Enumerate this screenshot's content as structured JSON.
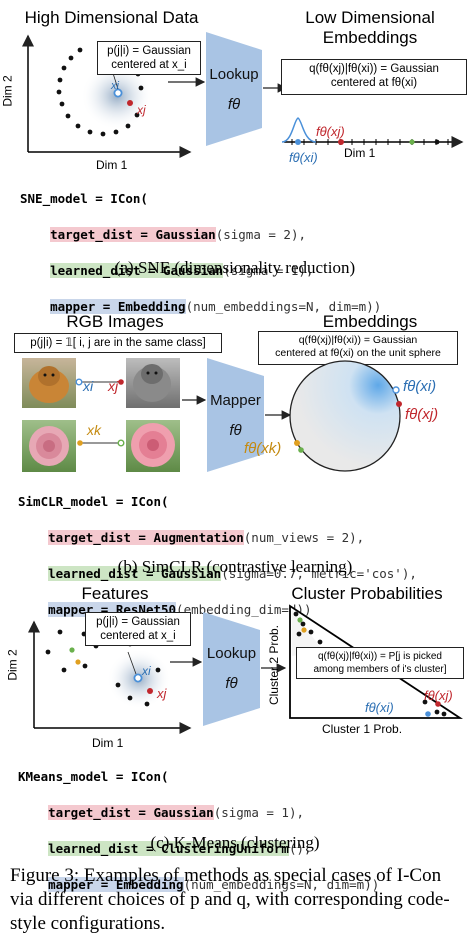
{
  "panel_a": {
    "header_left": "High Dimensional Data",
    "header_right_line1": "Low Dimensional",
    "header_right_line2": "Embeddings",
    "box_left_line1": "p(j|i) = Gaussian",
    "box_left_line2": "centered at x_i",
    "box_right_line1": "q(fθ(xj)|fθ(xi)) = Gaussian",
    "box_right_line2": "centered at fθ(xi)",
    "lookup_label": "Lookup",
    "f_label": "fθ",
    "dim2": "Dim 2",
    "dim1": "Dim 1",
    "dim1_right": "Dim 1",
    "xi": "xi",
    "xj": "xj",
    "f_xj": "fθ(xj)",
    "f_xi": "fθ(xi)",
    "code_line1": "SNE_model = ICon(",
    "code_l2_key": "target_dist = Gaussian",
    "code_l2_args": "(sigma = 2),",
    "code_l3_key": "learned_dist = Gaussian",
    "code_l3_args": "(sigma = 1),",
    "code_l4_key": "mapper = Embedding",
    "code_l4_args": "(num_embeddings=N, dim=m))",
    "caption": "(a) SNE (dimensionality reduction)"
  },
  "panel_b": {
    "header_left": "RGB Images",
    "header_right": "Embeddings",
    "box_left": "p(j|i) = 𝟙[ i, j are in the same class]",
    "box_right_line1": "q(fθ(xj)|fθ(xi)) = Gaussian",
    "box_right_line2": "centered at fθ(xi) on the unit sphere",
    "mapper_label": "Mapper",
    "f_label": "fθ",
    "xi": "xi",
    "xj": "xj",
    "xk": "xk",
    "f_xi": "fθ(xi)",
    "f_xj": "fθ(xj)",
    "f_xk": "fθ(xk)",
    "code_line1": "SimCLR_model = ICon(",
    "code_l2_key": "target_dist = Augmentation",
    "code_l2_args": "(num_views = 2),",
    "code_l3_key": "learned_dist = Gaussian",
    "code_l3_args": "(sigma=0.7, metric='cos'),",
    "code_l4_key": "mapper = ResNet50",
    "code_l4_args": "(embedding_dim=d))",
    "caption": "(b) SimCLR (contrastive learning)"
  },
  "panel_c": {
    "header_left": "Features",
    "header_right": "Cluster Probabilities",
    "box_left_line1": "p(j|i) = Gaussian",
    "box_left_line2": "centered at x_i",
    "box_right_line1": "q(fθ(xj)|fθ(xi)) = P[j is picked",
    "box_right_line2": "among members of i's cluster]",
    "lookup_label": "Lookup",
    "f_label": "fθ",
    "dim2": "Dim 2",
    "dim1": "Dim 1",
    "cluster2": "Cluster 2 Prob.",
    "cluster1": "Cluster 1 Prob.",
    "xi": "xi",
    "xj": "xj",
    "f_xj": "fθ(xj)",
    "f_xi": "fθ(xi)",
    "code_line1": "KMeans_model = ICon(",
    "code_l2_key": "target_dist = Gaussian",
    "code_l2_args": "(sigma = 1),",
    "code_l3_key": "learned_dist = ClusteringUniform",
    "code_l3_args": "(),",
    "code_l4_key": "mapper = Embedding",
    "code_l4_args": "(num_embeddings=N, dim=m))",
    "caption": "(c) K-Means (clustering)"
  },
  "figure_caption": "Figure 3: Examples of methods as special cases of I-Con via different choices of p and q, with corresponding code-style configurations.",
  "colors": {
    "blue_point": "#4a90d9",
    "red_point": "#c0272d",
    "orange_point": "#e0a020",
    "green_point": "#6ab04c",
    "trapezoid": "#a9c4e4"
  }
}
